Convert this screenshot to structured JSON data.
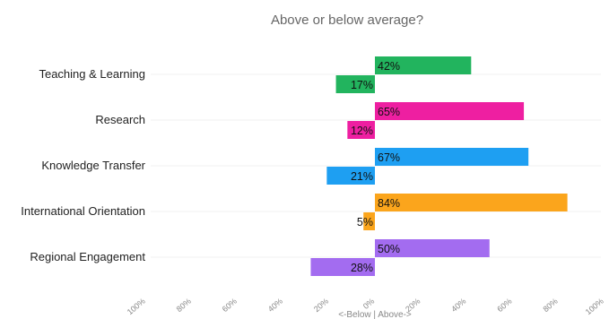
{
  "chart_data": {
    "type": "bar",
    "orientation": "horizontal",
    "title": "Above or below average?",
    "xlabel": "<-Below | Above->",
    "categories": [
      "Teaching & Learning",
      "Research",
      "Knowledge Transfer",
      "International Orientation",
      "Regional Engagement"
    ],
    "series": [
      {
        "name": "",
        "role": "above",
        "values": [
          42,
          65,
          67,
          84,
          50
        ],
        "labels": [
          "42%",
          "65%",
          "67%",
          "84%",
          "50%"
        ]
      },
      {
        "name": "",
        "role": "below",
        "values": [
          17,
          12,
          21,
          5,
          28
        ],
        "labels": [
          "17%",
          "12%",
          "21%",
          "5%",
          "28%"
        ]
      }
    ],
    "colors": [
      "#22b45e",
      "#ee1fa1",
      "#1e9ff2",
      "#fba51c",
      "#a36cf0"
    ],
    "xlim": [
      -100,
      100
    ],
    "xticks": [
      -100,
      -80,
      -60,
      -40,
      -20,
      0,
      20,
      40,
      60,
      80,
      100
    ],
    "xtick_labels": [
      "100%",
      "80%",
      "60%",
      "40%",
      "20%",
      "0%",
      "20%",
      "40%",
      "60%",
      "80%",
      "100%"
    ],
    "grid": true,
    "legend": "none"
  }
}
